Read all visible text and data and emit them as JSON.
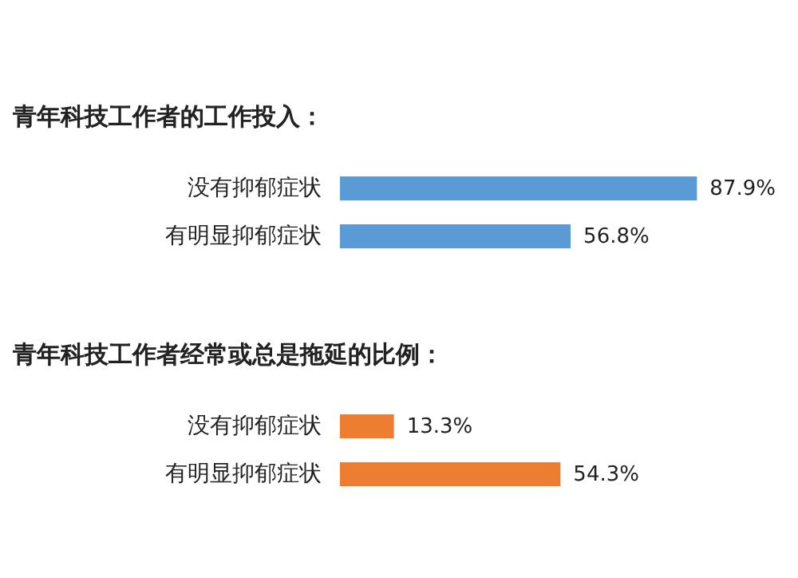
{
  "chart_data": [
    {
      "type": "bar",
      "orientation": "horizontal",
      "title": "青年科技工作者的工作投入：",
      "categories": [
        "没有抑郁症状",
        "有明显抑郁症状"
      ],
      "values": [
        87.9,
        56.8
      ],
      "value_labels": [
        "87.9%",
        "56.8%"
      ],
      "color": "#5b9bd5"
    },
    {
      "type": "bar",
      "orientation": "horizontal",
      "title": "青年科技工作者经常或总是拖延的比例：",
      "categories": [
        "没有抑郁症状",
        "有明显抑郁症状"
      ],
      "values": [
        13.3,
        54.3
      ],
      "value_labels": [
        "13.3%",
        "54.3%"
      ],
      "color": "#ed7d31"
    }
  ]
}
